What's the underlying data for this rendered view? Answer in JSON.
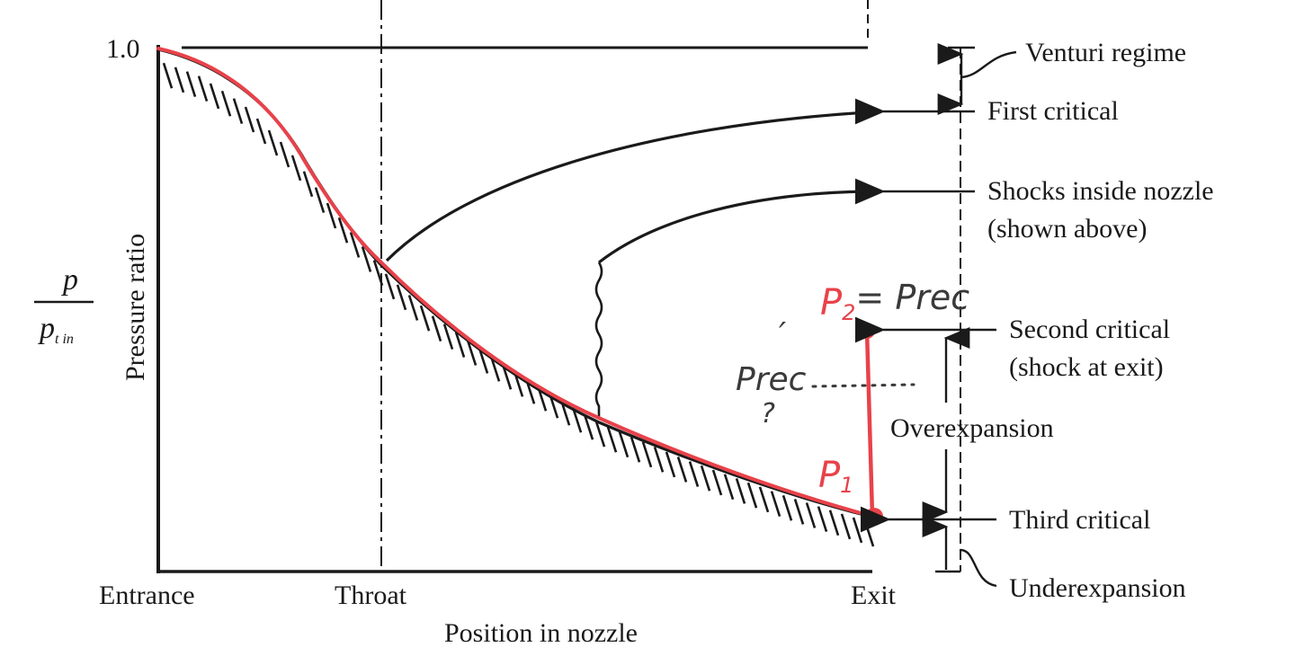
{
  "axes": {
    "y_tick_top": "1.0",
    "y_label": "Pressure ratio",
    "y_fraction_num": "p",
    "y_fraction_den": "p",
    "y_fraction_den_sub": "t in",
    "x_label": "Position in nozzle",
    "x_ticks": [
      "Entrance",
      "Throat",
      "Exit"
    ]
  },
  "regime_labels": {
    "venturi": "Venturi regime",
    "first_critical": "First critical",
    "shocks_inside_1": "Shocks inside nozzle",
    "shocks_inside_2": "(shown above)",
    "second_critical_1": "Second critical",
    "second_critical_2": "(shock at exit)",
    "overexpansion": "Overexpansion",
    "third_critical": "Third critical",
    "underexpansion": "Underexpansion"
  },
  "annotations": {
    "p2_main": "P",
    "p2_sub": "2",
    "p2_rest": "= Prec",
    "p1_main": "P",
    "p1_sub": "1",
    "prec_prime": "Prec",
    "prime_mark": "′",
    "question": "?"
  },
  "colors": {
    "ink": "#1a1a1a",
    "annotation_red": "#e8424a",
    "annotation_gray": "#3a3a3a"
  }
}
